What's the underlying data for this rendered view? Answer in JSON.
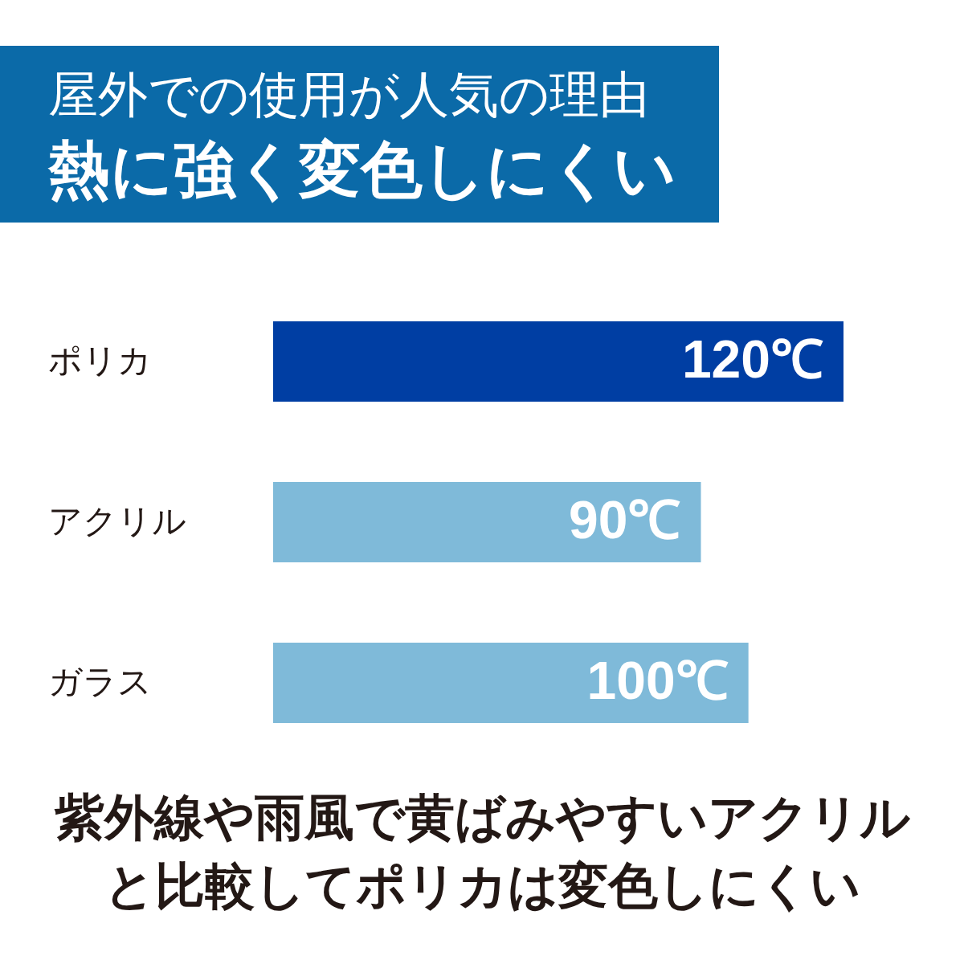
{
  "chart_data": {
    "type": "bar",
    "orientation": "horizontal",
    "title": "屋外での使用が人気の理由",
    "subtitle": "熱に強く変色しにくい",
    "categories": [
      "ポリカ",
      "アクリル",
      "ガラス"
    ],
    "values": [
      120,
      90,
      100
    ],
    "colors": [
      "#003ea3",
      "#7fbad9",
      "#7fbad9"
    ],
    "value_labels": [
      "120℃",
      "90℃",
      "100℃"
    ],
    "tick_labels": "y",
    "annotations": [
      "紫外線や雨風で黄ばみやすいアクリル",
      "と比較してポリカは変色しにくい"
    ]
  }
}
